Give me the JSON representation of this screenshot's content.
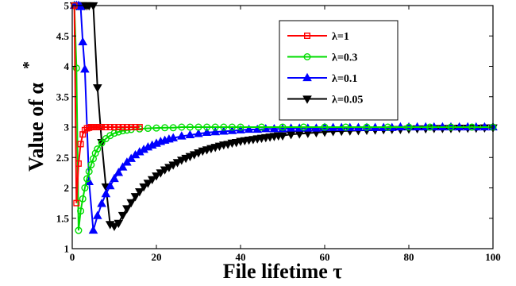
{
  "chart_data": {
    "type": "line",
    "xlabel": "File lifetime τ",
    "ylabel": "Value of α",
    "ylabel_superscript": "*",
    "xlim": [
      0,
      100
    ],
    "ylim": [
      1,
      5
    ],
    "xticks": [
      0,
      20,
      40,
      60,
      80,
      100
    ],
    "yticks": [
      1,
      1.5,
      2,
      2.5,
      3,
      3.5,
      4,
      4.5,
      5
    ],
    "ytick_labels": [
      "1",
      "1.5",
      "2",
      "2.5",
      "3",
      "3.5",
      "4",
      "4.5",
      "5"
    ],
    "grid": false,
    "legend_position": "top-right",
    "series": [
      {
        "name": "λ=1",
        "color": "#ff0000",
        "marker": "square",
        "x": [
          0.5,
          1,
          1.5,
          2,
          2.5,
          3,
          3.5,
          4,
          4.5,
          5,
          5.5,
          6,
          6.5,
          7,
          8,
          9,
          10,
          11,
          12,
          13,
          14,
          15,
          16
        ],
        "y": [
          5,
          1.75,
          2.4,
          2.72,
          2.88,
          2.95,
          2.98,
          2.99,
          3,
          3,
          3,
          3,
          3,
          3,
          3,
          3,
          3,
          3,
          3,
          3,
          3,
          3,
          3
        ]
      },
      {
        "name": "λ=0.3",
        "color": "#00dd00",
        "marker": "circle",
        "x": [
          0.5,
          1,
          1.5,
          2,
          2.5,
          3,
          3.5,
          4,
          4.5,
          5,
          5.5,
          6,
          7,
          8,
          9,
          10,
          11,
          12,
          13,
          14,
          16,
          18,
          20,
          22,
          24,
          26,
          28,
          30,
          32,
          34,
          36,
          38,
          40,
          45,
          50,
          55,
          60,
          65,
          70,
          75,
          80,
          85,
          90,
          95,
          100
        ],
        "y": [
          5,
          3.97,
          1.3,
          1.62,
          1.82,
          2.0,
          2.15,
          2.27,
          2.38,
          2.48,
          2.57,
          2.64,
          2.74,
          2.81,
          2.86,
          2.9,
          2.92,
          2.94,
          2.95,
          2.96,
          2.97,
          2.98,
          2.985,
          2.99,
          2.99,
          3,
          3,
          3,
          3,
          3,
          3,
          3,
          3,
          3,
          3,
          3,
          3,
          3,
          3,
          3,
          3,
          3,
          3,
          3,
          3
        ]
      },
      {
        "name": "λ=0.1",
        "color": "#0000ff",
        "marker": "triangle-up",
        "x": [
          0.5,
          1,
          1.5,
          2,
          2.5,
          3,
          4,
          5,
          6,
          7,
          8,
          9,
          10,
          11,
          12,
          13,
          14,
          15,
          16,
          17,
          18,
          19,
          20,
          21,
          22,
          23,
          24,
          26,
          28,
          30,
          32,
          34,
          36,
          38,
          40,
          42,
          44,
          46,
          48,
          50,
          52,
          54,
          56,
          58,
          60,
          62,
          64,
          66,
          68,
          70,
          72,
          74,
          76,
          78,
          80,
          82,
          84,
          86,
          88,
          90,
          92,
          94,
          96,
          98,
          100
        ],
        "y": [
          5,
          5,
          5,
          4.98,
          4.4,
          3.95,
          2.1,
          1.3,
          1.54,
          1.74,
          1.9,
          2.03,
          2.15,
          2.25,
          2.34,
          2.42,
          2.48,
          2.54,
          2.59,
          2.63,
          2.67,
          2.7,
          2.73,
          2.76,
          2.78,
          2.8,
          2.82,
          2.85,
          2.87,
          2.89,
          2.91,
          2.92,
          2.93,
          2.94,
          2.95,
          2.96,
          2.96,
          2.97,
          2.97,
          2.97,
          2.98,
          2.98,
          2.98,
          2.98,
          2.99,
          2.99,
          2.99,
          2.99,
          2.99,
          2.99,
          2.99,
          2.99,
          2.99,
          3,
          3,
          3,
          3,
          3,
          3,
          3,
          3,
          3,
          3,
          3,
          3
        ]
      },
      {
        "name": "λ=0.05",
        "color": "#000000",
        "marker": "triangle-down",
        "x": [
          0.5,
          1,
          1.5,
          2,
          2.5,
          3,
          3.5,
          4,
          5,
          6,
          7,
          8,
          9,
          10,
          11,
          12,
          13,
          14,
          15,
          16,
          17,
          18,
          19,
          20,
          21,
          22,
          23,
          24,
          25,
          26,
          27,
          28,
          29,
          30,
          31,
          32,
          33,
          34,
          35,
          36,
          37,
          38,
          39,
          40,
          41,
          42,
          43,
          44,
          45,
          46,
          47,
          48,
          49,
          50,
          52,
          54,
          56,
          58,
          60,
          62,
          64,
          66,
          68,
          70,
          72,
          74,
          76,
          78,
          80,
          82,
          84,
          86,
          88,
          90,
          92,
          94,
          96,
          98,
          100
        ],
        "y": [
          5,
          5,
          5,
          5,
          5,
          5,
          5,
          5,
          5,
          3.65,
          2.75,
          2.02,
          1.4,
          1.37,
          1.42,
          1.55,
          1.66,
          1.76,
          1.86,
          1.94,
          2.02,
          2.08,
          2.14,
          2.2,
          2.25,
          2.3,
          2.34,
          2.38,
          2.42,
          2.46,
          2.49,
          2.52,
          2.55,
          2.58,
          2.61,
          2.63,
          2.65,
          2.67,
          2.69,
          2.71,
          2.72,
          2.74,
          2.75,
          2.77,
          2.78,
          2.79,
          2.8,
          2.81,
          2.82,
          2.83,
          2.84,
          2.85,
          2.86,
          2.86,
          2.88,
          2.89,
          2.9,
          2.91,
          2.92,
          2.93,
          2.935,
          2.94,
          2.945,
          2.95,
          2.955,
          2.96,
          2.965,
          2.965,
          2.97,
          2.975,
          2.975,
          2.98,
          2.98,
          2.98,
          2.985,
          2.985,
          2.985,
          2.99,
          2.99
        ]
      }
    ]
  }
}
